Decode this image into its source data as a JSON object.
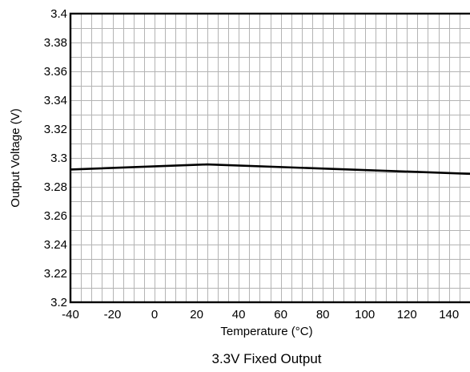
{
  "chart_data": {
    "type": "line",
    "title": "",
    "caption": "3.3V Fixed Output",
    "xlabel": "Temperature (°C)",
    "ylabel": "Output Voltage (V)",
    "xlim": [
      -40,
      150
    ],
    "ylim": [
      3.2,
      3.4
    ],
    "x_ticks": [
      -40,
      -20,
      0,
      20,
      40,
      60,
      80,
      100,
      120,
      140
    ],
    "x_tick_labels": [
      "-40",
      "-20",
      "0",
      "20",
      "40",
      "60",
      "80",
      "100",
      "120",
      "140"
    ],
    "y_ticks": [
      3.2,
      3.22,
      3.24,
      3.26,
      3.28,
      3.3,
      3.32,
      3.34,
      3.36,
      3.38,
      3.4
    ],
    "y_tick_labels": [
      "3.2",
      "3.22",
      "3.24",
      "3.26",
      "3.28",
      "3.3",
      "3.32",
      "3.34",
      "3.36",
      "3.38",
      "3.4"
    ],
    "grid": true,
    "grid_minor_x_step": 5,
    "grid_minor_y_step": 0.01,
    "series": [
      {
        "x": [
          -40,
          25,
          150
        ],
        "y": [
          3.292,
          3.2955,
          3.289
        ],
        "color": "#000000"
      }
    ]
  }
}
